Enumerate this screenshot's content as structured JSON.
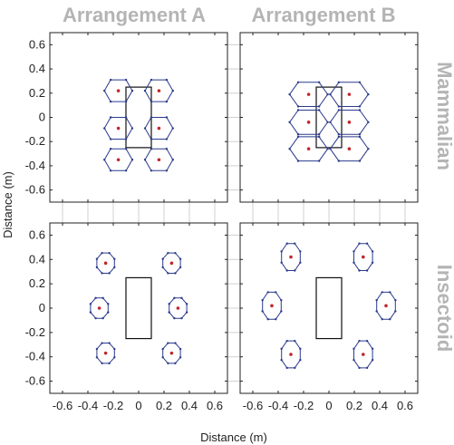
{
  "figure": {
    "col_titles": [
      "Arrangement A",
      "Arrangement B"
    ],
    "row_titles": [
      "Mammalian",
      "Insectoid"
    ],
    "xlabel": "Distance (m)",
    "ylabel": "Distance (m)"
  },
  "colors": {
    "polygon": "#2b3a8c",
    "center": "#c0282b",
    "body": "#111111",
    "frame": "#222222",
    "grid": "#d0d0d0",
    "title": "#b4b4b4"
  },
  "chart_data": [
    {
      "type": "scatter",
      "panel": "mammalian-arrangement-a",
      "xlim": [
        -0.7,
        0.7
      ],
      "ylim": [
        -0.7,
        0.7
      ],
      "xticks": [
        "-0.6",
        "-0.4",
        "-0.2",
        "0",
        "0.2",
        "0.4",
        "0.6"
      ],
      "yticks": [
        "0.6",
        "0.4",
        "0.2",
        "0",
        "-0.2",
        "-0.4",
        "-0.6"
      ],
      "body": {
        "x0": -0.1,
        "x1": 0.1,
        "y0": -0.25,
        "y1": 0.25
      },
      "legs": [
        {
          "x": -0.16,
          "y": 0.22,
          "hw": 0.11,
          "hh": 0.09,
          "shape": "hex"
        },
        {
          "x": 0.16,
          "y": 0.22,
          "hw": 0.11,
          "hh": 0.09,
          "shape": "hex"
        },
        {
          "x": -0.16,
          "y": -0.09,
          "hw": 0.11,
          "hh": 0.09,
          "shape": "hex"
        },
        {
          "x": 0.16,
          "y": -0.09,
          "hw": 0.11,
          "hh": 0.09,
          "shape": "hex"
        },
        {
          "x": -0.16,
          "y": -0.35,
          "hw": 0.11,
          "hh": 0.09,
          "shape": "hex"
        },
        {
          "x": 0.16,
          "y": -0.35,
          "hw": 0.11,
          "hh": 0.09,
          "shape": "hex"
        }
      ]
    },
    {
      "type": "scatter",
      "panel": "mammalian-arrangement-b",
      "xlim": [
        -0.7,
        0.7
      ],
      "ylim": [
        -0.7,
        0.7
      ],
      "body": {
        "x0": -0.1,
        "x1": 0.1,
        "y0": -0.25,
        "y1": 0.25
      },
      "legs": [
        {
          "x": -0.16,
          "y": 0.19,
          "hw": 0.15,
          "hh": 0.1,
          "shape": "hex"
        },
        {
          "x": 0.16,
          "y": 0.19,
          "hw": 0.15,
          "hh": 0.1,
          "shape": "hex"
        },
        {
          "x": -0.16,
          "y": -0.04,
          "hw": 0.15,
          "hh": 0.1,
          "shape": "hex"
        },
        {
          "x": 0.16,
          "y": -0.04,
          "hw": 0.15,
          "hh": 0.1,
          "shape": "hex"
        },
        {
          "x": -0.16,
          "y": -0.26,
          "hw": 0.15,
          "hh": 0.1,
          "shape": "hex"
        },
        {
          "x": 0.16,
          "y": -0.26,
          "hw": 0.15,
          "hh": 0.1,
          "shape": "hex"
        }
      ]
    },
    {
      "type": "scatter",
      "panel": "insectoid-arrangement-a",
      "xlim": [
        -0.7,
        0.7
      ],
      "ylim": [
        -0.7,
        0.7
      ],
      "body": {
        "x0": -0.1,
        "x1": 0.1,
        "y0": -0.25,
        "y1": 0.25
      },
      "legs": [
        {
          "x": -0.26,
          "y": 0.37,
          "hw": 0.075,
          "hh": 0.09,
          "shape": "oct"
        },
        {
          "x": 0.26,
          "y": 0.37,
          "hw": 0.075,
          "hh": 0.09,
          "shape": "oct"
        },
        {
          "x": -0.31,
          "y": 0.0,
          "hw": 0.075,
          "hh": 0.09,
          "shape": "oct"
        },
        {
          "x": 0.31,
          "y": 0.0,
          "hw": 0.075,
          "hh": 0.09,
          "shape": "oct"
        },
        {
          "x": -0.26,
          "y": -0.37,
          "hw": 0.075,
          "hh": 0.09,
          "shape": "oct"
        },
        {
          "x": 0.26,
          "y": -0.37,
          "hw": 0.075,
          "hh": 0.09,
          "shape": "oct"
        }
      ]
    },
    {
      "type": "scatter",
      "panel": "insectoid-arrangement-b",
      "xlim": [
        -0.7,
        0.7
      ],
      "ylim": [
        -0.7,
        0.7
      ],
      "body": {
        "x0": -0.1,
        "x1": 0.1,
        "y0": -0.25,
        "y1": 0.25
      },
      "legs": [
        {
          "x": -0.3,
          "y": 0.42,
          "hw": 0.08,
          "hh": 0.12,
          "shape": "oct"
        },
        {
          "x": 0.27,
          "y": 0.42,
          "hw": 0.08,
          "hh": 0.12,
          "shape": "oct"
        },
        {
          "x": -0.45,
          "y": 0.02,
          "hw": 0.08,
          "hh": 0.12,
          "shape": "oct"
        },
        {
          "x": 0.45,
          "y": 0.02,
          "hw": 0.08,
          "hh": 0.12,
          "shape": "oct"
        },
        {
          "x": -0.3,
          "y": -0.38,
          "hw": 0.08,
          "hh": 0.12,
          "shape": "oct"
        },
        {
          "x": 0.27,
          "y": -0.38,
          "hw": 0.08,
          "hh": 0.12,
          "shape": "oct"
        }
      ]
    }
  ]
}
